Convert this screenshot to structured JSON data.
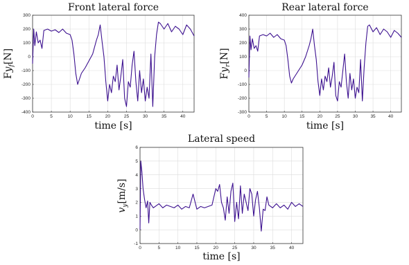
{
  "chart_data": [
    {
      "type": "line",
      "title": "Front lateral force",
      "xlabel": "time [s]",
      "ylabel": "Fy_f[N]",
      "xlim": [
        0,
        43
      ],
      "ylim": [
        -400,
        300
      ],
      "xticks": [
        0,
        5,
        10,
        15,
        20,
        25,
        30,
        35,
        40
      ],
      "yticks": [
        -400,
        -300,
        -200,
        -100,
        0,
        100,
        200,
        300
      ],
      "grid": true,
      "color": "#3b0f8f",
      "series": [
        {
          "x": [
            0,
            0.3,
            0.6,
            1,
            1.5,
            2,
            2.5,
            3,
            4,
            5,
            6,
            7,
            8,
            9,
            10,
            10.5,
            11,
            11.5,
            12,
            12.5,
            13,
            14,
            15,
            16,
            17,
            17.5,
            18,
            18.5,
            19,
            19.5,
            20,
            20.5,
            21,
            21.5,
            22,
            22.5,
            23,
            23.5,
            24,
            24.5,
            25,
            25.5,
            26,
            26.5,
            27,
            27.5,
            28,
            28.5,
            29,
            29.5,
            30,
            30.5,
            31,
            31.5,
            32,
            32.5,
            33,
            33.5,
            34,
            35,
            36,
            37,
            38,
            39,
            40,
            41,
            42,
            43
          ],
          "y": [
            -50,
            200,
            80,
            180,
            100,
            120,
            60,
            190,
            200,
            185,
            195,
            175,
            200,
            170,
            160,
            120,
            20,
            -120,
            -200,
            -160,
            -120,
            -80,
            -30,
            20,
            120,
            160,
            230,
            110,
            0,
            -180,
            -320,
            -200,
            -260,
            -140,
            -180,
            -60,
            -240,
            -140,
            -20,
            -300,
            -360,
            -180,
            -220,
            -60,
            40,
            -180,
            -320,
            -100,
            -260,
            -160,
            -320,
            -220,
            -300,
            20,
            -360,
            0,
            160,
            250,
            240,
            200,
            240,
            180,
            220,
            200,
            160,
            230,
            200,
            150
          ]
        }
      ]
    },
    {
      "type": "line",
      "title": "Rear lateral force",
      "xlabel": "time [s]",
      "ylabel": "Fy_r[N]",
      "xlim": [
        0,
        43
      ],
      "ylim": [
        -300,
        400
      ],
      "xticks": [
        0,
        5,
        10,
        15,
        20,
        25,
        30,
        35,
        40
      ],
      "yticks": [
        -300,
        -200,
        -100,
        0,
        100,
        200,
        300,
        400
      ],
      "grid": true,
      "color": "#3b0f8f",
      "series": [
        {
          "x": [
            0,
            0.3,
            0.6,
            1,
            1.5,
            2,
            2.5,
            3,
            4,
            5,
            6,
            7,
            8,
            9,
            10,
            10.5,
            11,
            11.5,
            12,
            12.5,
            13,
            14,
            15,
            16,
            17,
            17.5,
            18,
            18.5,
            19,
            19.5,
            20,
            20.5,
            21,
            21.5,
            22,
            22.5,
            23,
            23.5,
            24,
            24.5,
            25,
            25.5,
            26,
            26.5,
            27,
            27.5,
            28,
            28.5,
            29,
            29.5,
            30,
            30.5,
            31,
            31.5,
            32,
            32.5,
            33,
            33.5,
            34,
            35,
            36,
            37,
            38,
            39,
            40,
            41,
            42,
            43
          ],
          "y": [
            -50,
            250,
            150,
            230,
            160,
            180,
            140,
            250,
            260,
            250,
            270,
            240,
            260,
            230,
            220,
            180,
            80,
            -40,
            -90,
            -60,
            -40,
            0,
            40,
            100,
            180,
            230,
            300,
            180,
            80,
            -80,
            -180,
            -60,
            -140,
            -40,
            -80,
            20,
            -120,
            -40,
            60,
            -180,
            -220,
            -80,
            -120,
            0,
            120,
            -80,
            -200,
            -20,
            -140,
            -60,
            -200,
            -120,
            -160,
            80,
            -220,
            20,
            200,
            320,
            330,
            280,
            310,
            260,
            300,
            280,
            240,
            290,
            270,
            240
          ]
        }
      ]
    },
    {
      "type": "line",
      "title": "Lateral speed",
      "xlabel": "time [s]",
      "ylabel": "v_y[m/s]",
      "xlim": [
        0,
        43
      ],
      "ylim": [
        -1,
        6
      ],
      "xticks": [
        0,
        5,
        10,
        15,
        20,
        25,
        30,
        35,
        40
      ],
      "yticks": [
        -1,
        0,
        1,
        2,
        3,
        4,
        5,
        6
      ],
      "grid": true,
      "color": "#3b0f8f",
      "series": [
        {
          "x": [
            0,
            0.2,
            0.5,
            0.8,
            1.2,
            1.6,
            2,
            2.3,
            2.6,
            3,
            3.5,
            4,
            5,
            6,
            7,
            8,
            9,
            10,
            11,
            12,
            13,
            14,
            15,
            16,
            17,
            18,
            19,
            20,
            20.5,
            21,
            21.5,
            22,
            22.5,
            23,
            23.5,
            24,
            24.5,
            25,
            25.5,
            26,
            26.5,
            27,
            27.5,
            28,
            28.5,
            29,
            29.5,
            30,
            30.5,
            31,
            31.5,
            32,
            32.5,
            33,
            33.5,
            34,
            35,
            36,
            37,
            38,
            39,
            40,
            41,
            42,
            43
          ],
          "y": [
            0,
            5,
            4.2,
            3,
            2.2,
            1.6,
            2.1,
            0.5,
            2,
            1.8,
            1.6,
            1.7,
            1.9,
            1.6,
            1.8,
            1.7,
            1.6,
            1.8,
            1.5,
            1.7,
            1.6,
            2.6,
            1.5,
            1.7,
            1.6,
            1.7,
            1.8,
            3.0,
            2.8,
            3.3,
            2.0,
            1.6,
            0.7,
            2.4,
            1.2,
            2.8,
            3.4,
            0.6,
            2.0,
            0.8,
            3.2,
            1.2,
            2.6,
            2.0,
            1.4,
            3.0,
            2.6,
            1.0,
            2.2,
            2.8,
            1.6,
            -0.1,
            1.5,
            1.4,
            2.4,
            1.8,
            1.6,
            1.9,
            1.6,
            1.8,
            1.5,
            2.0,
            1.7,
            1.9,
            1.7
          ]
        }
      ]
    }
  ]
}
